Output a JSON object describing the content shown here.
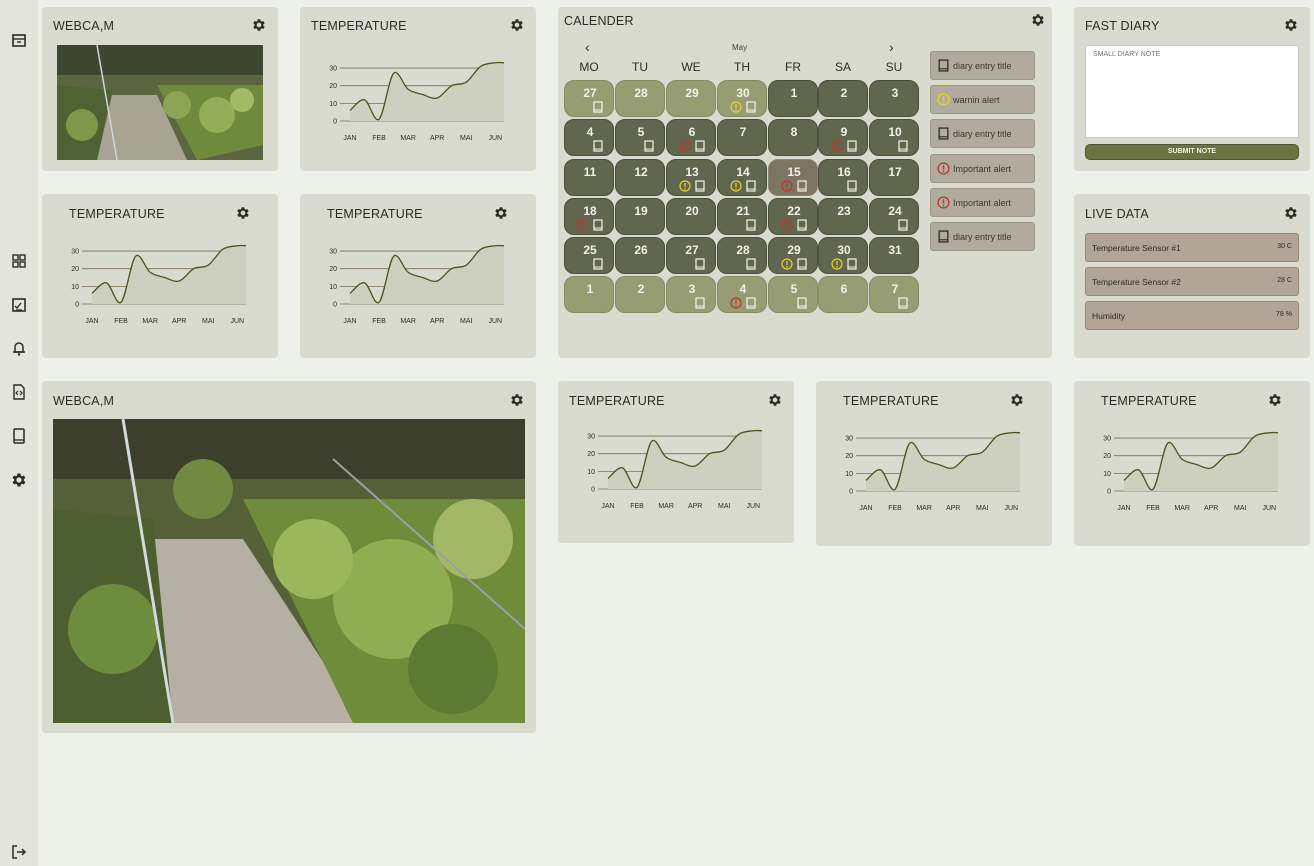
{
  "sidebar": {
    "items": [
      {
        "icon": "archive-icon"
      },
      {
        "icon": "dashboard-icon"
      },
      {
        "icon": "checklist-icon"
      },
      {
        "icon": "bell-icon"
      },
      {
        "icon": "code-file-icon"
      },
      {
        "icon": "book-icon"
      },
      {
        "icon": "settings-icon"
      }
    ],
    "logout_icon": "logout-icon"
  },
  "widgets": {
    "webcam_small_title": "WEBCA,M",
    "webcam_large_title": "WEBCA,M",
    "temperature_title": "TEMPERATURE",
    "calendar_title": "CALENDER",
    "fast_diary_title": "FAST DIARY",
    "live_data_title": "LIVE DATA"
  },
  "chart_data": {
    "type": "line",
    "categories": [
      "JAN",
      "FEB",
      "MAR",
      "APR",
      "MAI",
      "JUN"
    ],
    "y_ticks": [
      "0",
      "10",
      "20",
      "30"
    ],
    "ylim": [
      0,
      34
    ],
    "x": [
      0,
      0.5,
      1,
      1.5,
      2,
      2.5,
      3,
      3.5,
      4,
      4.5,
      5,
      5.3
    ],
    "values": [
      6,
      12,
      1,
      27,
      18,
      15,
      13,
      20,
      22,
      31,
      33,
      33
    ],
    "line_color": "#4a5320",
    "fill_color": "#cdcfbf"
  },
  "calendar": {
    "month": "May",
    "prev_label": "‹",
    "next_label": "›",
    "weekdays": [
      "MO",
      "TU",
      "WE",
      "TH",
      "FR",
      "SA",
      "SU"
    ],
    "weeks": [
      [
        {
          "d": "27",
          "t": "light",
          "i": [
            "book"
          ]
        },
        {
          "d": "28",
          "t": "light",
          "i": []
        },
        {
          "d": "29",
          "t": "light",
          "i": []
        },
        {
          "d": "30",
          "t": "light",
          "i": [
            "warn",
            "book"
          ]
        },
        {
          "d": "1",
          "t": "dark",
          "i": []
        },
        {
          "d": "2",
          "t": "dark",
          "i": []
        },
        {
          "d": "3",
          "t": "dark",
          "i": []
        }
      ],
      [
        {
          "d": "4",
          "t": "dark",
          "i": [
            "book"
          ]
        },
        {
          "d": "5",
          "t": "dark",
          "i": [
            "book"
          ]
        },
        {
          "d": "6",
          "t": "dark",
          "i": [
            "alert",
            "book"
          ]
        },
        {
          "d": "7",
          "t": "dark",
          "i": []
        },
        {
          "d": "8",
          "t": "dark",
          "i": []
        },
        {
          "d": "9",
          "t": "dark",
          "i": [
            "alert",
            "book"
          ]
        },
        {
          "d": "10",
          "t": "dark",
          "i": [
            "book"
          ]
        }
      ],
      [
        {
          "d": "11",
          "t": "dark",
          "i": []
        },
        {
          "d": "12",
          "t": "dark",
          "i": []
        },
        {
          "d": "13",
          "t": "dark",
          "i": [
            "warn",
            "book"
          ]
        },
        {
          "d": "14",
          "t": "dark",
          "i": [
            "warn",
            "book"
          ]
        },
        {
          "d": "15",
          "t": "today",
          "i": [
            "alert",
            "book"
          ]
        },
        {
          "d": "16",
          "t": "dark",
          "i": [
            "book"
          ]
        },
        {
          "d": "17",
          "t": "dark",
          "i": []
        }
      ],
      [
        {
          "d": "18",
          "t": "dark",
          "i": [
            "alert",
            "book"
          ]
        },
        {
          "d": "19",
          "t": "dark",
          "i": []
        },
        {
          "d": "20",
          "t": "dark",
          "i": []
        },
        {
          "d": "21",
          "t": "dark",
          "i": [
            "book"
          ]
        },
        {
          "d": "22",
          "t": "dark",
          "i": [
            "alert",
            "book"
          ]
        },
        {
          "d": "23",
          "t": "dark",
          "i": []
        },
        {
          "d": "24",
          "t": "dark",
          "i": [
            "book"
          ]
        }
      ],
      [
        {
          "d": "25",
          "t": "dark",
          "i": [
            "book"
          ]
        },
        {
          "d": "26",
          "t": "dark",
          "i": []
        },
        {
          "d": "27",
          "t": "dark",
          "i": [
            "book"
          ]
        },
        {
          "d": "28",
          "t": "dark",
          "i": [
            "book"
          ]
        },
        {
          "d": "29",
          "t": "dark",
          "i": [
            "warn",
            "book"
          ]
        },
        {
          "d": "30",
          "t": "dark",
          "i": [
            "warn",
            "book"
          ]
        },
        {
          "d": "31",
          "t": "dark",
          "i": []
        }
      ],
      [
        {
          "d": "1",
          "t": "light",
          "i": []
        },
        {
          "d": "2",
          "t": "light",
          "i": []
        },
        {
          "d": "3",
          "t": "light",
          "i": [
            "book"
          ]
        },
        {
          "d": "4",
          "t": "light",
          "i": [
            "alert",
            "book"
          ]
        },
        {
          "d": "5",
          "t": "light",
          "i": [
            "book"
          ]
        },
        {
          "d": "6",
          "t": "light",
          "i": []
        },
        {
          "d": "7",
          "t": "light",
          "i": [
            "book"
          ]
        }
      ]
    ],
    "side_entries": [
      {
        "icon": "book",
        "label": "diary entry title"
      },
      {
        "icon": "warn",
        "label": "warnin alert"
      },
      {
        "icon": "book",
        "label": "diary entry title"
      },
      {
        "icon": "alert",
        "label": "Important alert"
      },
      {
        "icon": "alert",
        "label": "Important alert"
      },
      {
        "icon": "book",
        "label": "diary entry title"
      }
    ]
  },
  "fast_diary": {
    "placeholder": "SMALL DIARY NOTE",
    "submit_label": "SUBMIT NOTE"
  },
  "live_data": {
    "rows": [
      {
        "label": "Temperature Sensor #1",
        "value": "30 C"
      },
      {
        "label": "Temperature Sensor #2",
        "value": "28 C"
      },
      {
        "label": "Humidity",
        "value": "78 %"
      }
    ]
  },
  "colors": {
    "warn": "#e6d230",
    "alert": "#b8392e",
    "book_stroke": "#f4f4ea"
  }
}
